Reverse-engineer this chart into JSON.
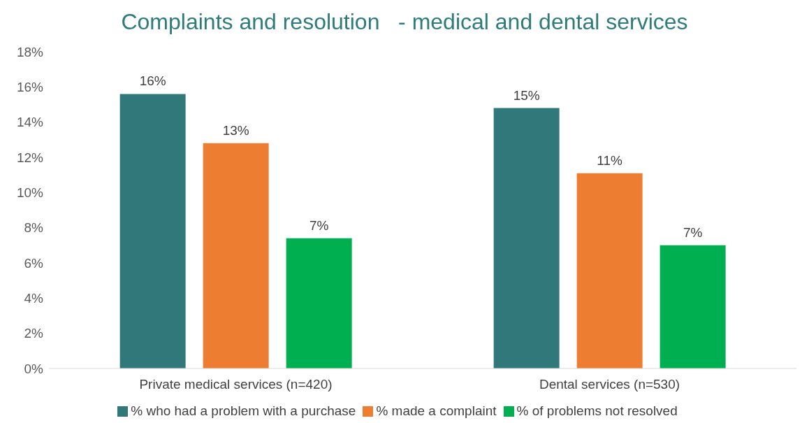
{
  "chart_data": {
    "type": "bar",
    "title": "Complaints and resolution   - medical and dental services",
    "categories": [
      "Private medical services (n=420)",
      "Dental services (n=530)"
    ],
    "series": [
      {
        "name": "% who had a problem with a purchase",
        "color": "#31787b",
        "values": [
          15.6,
          14.8
        ],
        "value_labels": [
          "16%",
          "15%"
        ]
      },
      {
        "name": "% made a complaint",
        "color": "#ed7d31",
        "values": [
          12.8,
          11.1
        ],
        "value_labels": [
          "13%",
          "11%"
        ]
      },
      {
        "name": "% of problems not resolved",
        "color": "#00b050",
        "values": [
          7.4,
          7.0
        ],
        "value_labels": [
          "7%",
          "7%"
        ]
      }
    ],
    "ylim": [
      0,
      18
    ],
    "yticks": [
      {
        "value": 0,
        "label": "0%"
      },
      {
        "value": 2,
        "label": "2%"
      },
      {
        "value": 4,
        "label": "4%"
      },
      {
        "value": 6,
        "label": "6%"
      },
      {
        "value": 8,
        "label": "8%"
      },
      {
        "value": 10,
        "label": "10%"
      },
      {
        "value": 12,
        "label": "12%"
      },
      {
        "value": 14,
        "label": "14%"
      },
      {
        "value": 16,
        "label": "16%"
      },
      {
        "value": 18,
        "label": "18%"
      }
    ],
    "grid": false,
    "legend": "bottom"
  }
}
